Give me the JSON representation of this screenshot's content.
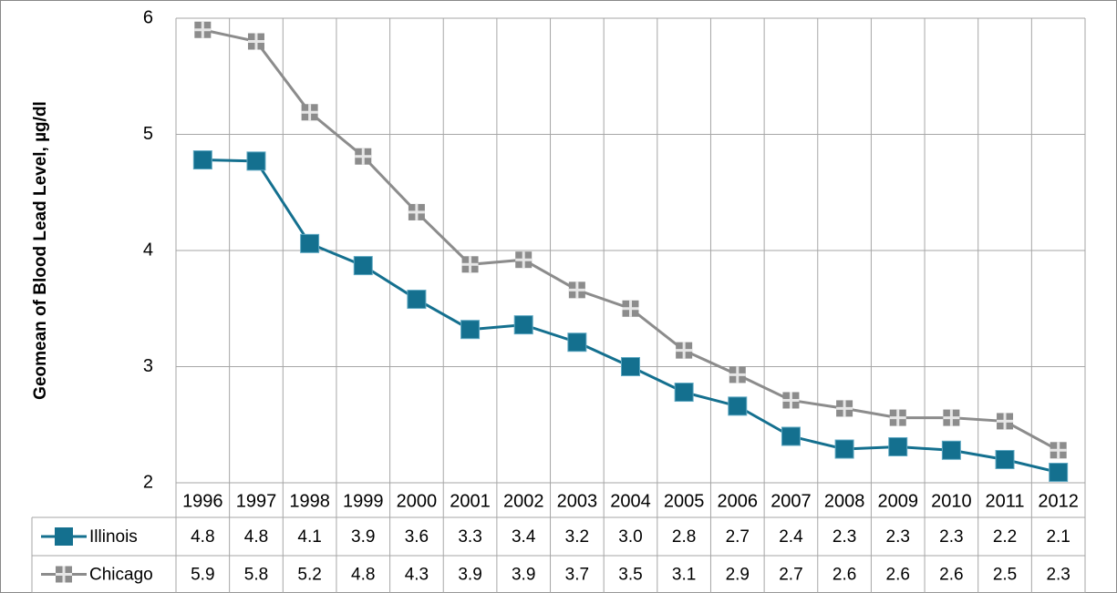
{
  "chart_data": {
    "type": "line",
    "y_label": "Geomean of Blood Lead Level, µg/dl",
    "categories": [
      "1996",
      "1997",
      "1998",
      "1999",
      "2000",
      "2001",
      "2002",
      "2003",
      "2004",
      "2005",
      "2006",
      "2007",
      "2008",
      "2009",
      "2010",
      "2011",
      "2012"
    ],
    "series": [
      {
        "name": "Illinois",
        "color": "#14708f",
        "values": [
          4.78,
          4.77,
          4.06,
          3.87,
          3.58,
          3.32,
          3.36,
          3.21,
          3.0,
          2.78,
          2.66,
          2.4,
          2.29,
          2.31,
          2.28,
          2.2,
          2.09
        ],
        "value_labels": [
          "4.8",
          "4.8",
          "4.1",
          "3.9",
          "3.6",
          "3.3",
          "3.4",
          "3.2",
          "3.0",
          "2.8",
          "2.7",
          "2.4",
          "2.3",
          "2.3",
          "2.3",
          "2.2",
          "2.1"
        ]
      },
      {
        "name": "Chicago",
        "color": "#8c8c8c",
        "values": [
          5.9,
          5.8,
          5.19,
          4.81,
          4.33,
          3.88,
          3.92,
          3.66,
          3.5,
          3.14,
          2.93,
          2.71,
          2.64,
          2.56,
          2.56,
          2.53,
          2.28
        ],
        "value_labels": [
          "5.9",
          "5.8",
          "5.2",
          "4.8",
          "4.3",
          "3.9",
          "3.9",
          "3.7",
          "3.5",
          "3.1",
          "2.9",
          "2.7",
          "2.6",
          "2.6",
          "2.6",
          "2.5",
          "2.3"
        ]
      }
    ],
    "ylim": [
      2,
      6
    ],
    "yticks": [
      2,
      3,
      4,
      5,
      6
    ],
    "grid": true
  }
}
